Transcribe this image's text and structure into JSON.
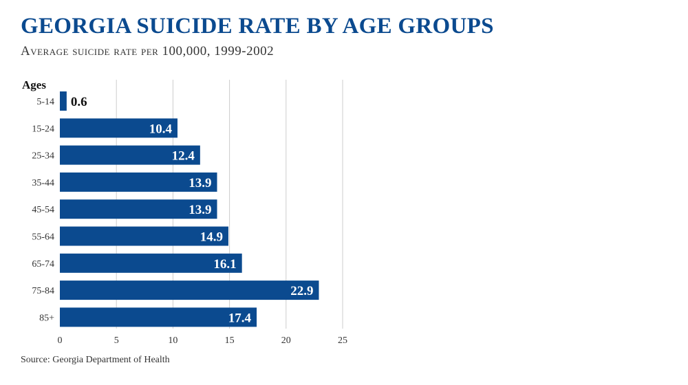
{
  "title": "Georgia suicide rate by age groups",
  "subtitle": "Average suicide rate per 100,000, 1999-2002",
  "source": "Source: Georgia Department of Health",
  "colors": {
    "bar": "#0b4a8f",
    "title": "#0b4a8f",
    "grid": "#cccccc",
    "text": "#222222"
  },
  "chart_data": {
    "type": "bar",
    "orientation": "horizontal",
    "ylabel": "Ages",
    "categories": [
      "5-14",
      "15-24",
      "25-34",
      "35-44",
      "45-54",
      "55-64",
      "65-74",
      "75-84",
      "85+"
    ],
    "values": [
      0.6,
      10.4,
      12.4,
      13.9,
      13.9,
      14.9,
      16.1,
      22.9,
      17.4
    ],
    "xlim": [
      0,
      25
    ],
    "xticks": [
      0,
      5,
      10,
      15,
      20,
      25
    ],
    "grid": true,
    "data_labels": true
  }
}
